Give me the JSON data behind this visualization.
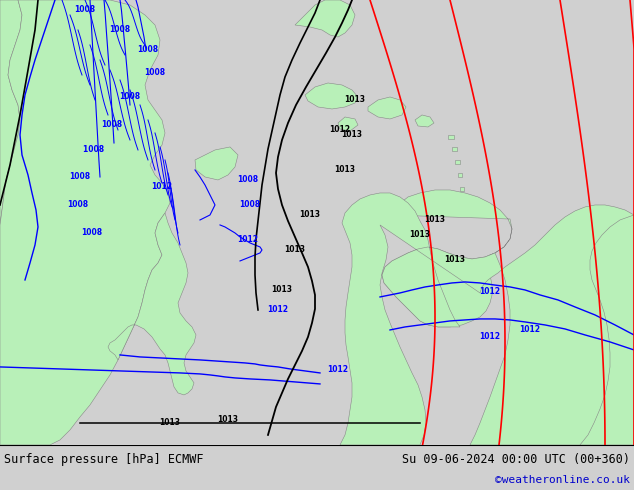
{
  "title_left": "Surface pressure [hPa] ECMWF",
  "title_right": "Su 09-06-2024 00:00 UTC (00+360)",
  "copyright": "©weatheronline.co.uk",
  "bg_color": "#d0d0d0",
  "land_color": "#b8f0b8",
  "ocean_color": "#d0d0d0",
  "footer_bg": "#e0e0e0",
  "footer_text_color": "#000000",
  "copyright_color": "#0000cc",
  "figsize": [
    6.34,
    4.9
  ],
  "dpi": 100
}
